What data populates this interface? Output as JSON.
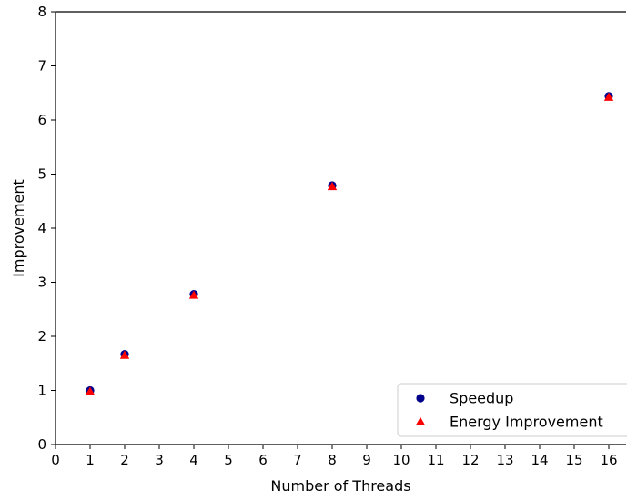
{
  "chart_data": {
    "type": "scatter",
    "title": "",
    "xlabel": "Number of Threads",
    "ylabel": "Improvement",
    "xlim": [
      0,
      16.5
    ],
    "ylim": [
      0,
      8
    ],
    "x_ticks": [
      0,
      1,
      2,
      3,
      4,
      5,
      6,
      7,
      8,
      9,
      10,
      11,
      12,
      13,
      14,
      15,
      16
    ],
    "y_ticks": [
      0,
      1,
      2,
      3,
      4,
      5,
      6,
      7,
      8
    ],
    "grid": false,
    "legend_position": "lower right",
    "series": [
      {
        "name": "Speedup",
        "marker": "circle",
        "color": "#00008b",
        "x": [
          1,
          2,
          4,
          8,
          16
        ],
        "y": [
          1.0,
          1.67,
          2.78,
          4.79,
          6.44
        ]
      },
      {
        "name": "Energy Improvement",
        "marker": "triangle",
        "color": "#ff0000",
        "x": [
          1,
          2,
          4,
          8,
          16
        ],
        "y": [
          0.98,
          1.65,
          2.76,
          4.77,
          6.42
        ]
      }
    ]
  }
}
